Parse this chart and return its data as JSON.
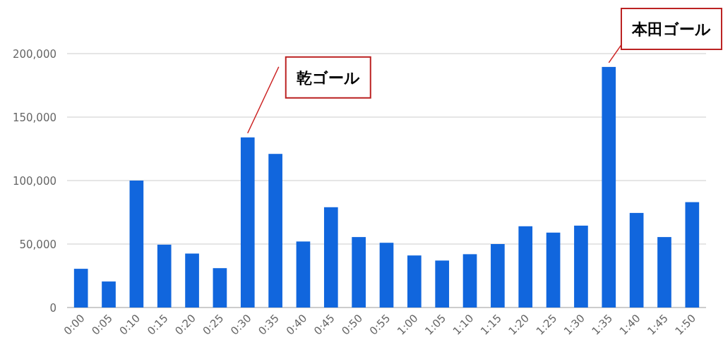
{
  "chart_data": {
    "type": "bar",
    "categories": [
      "0:00",
      "0:05",
      "0:10",
      "0:15",
      "0:20",
      "0:25",
      "0:30",
      "0:35",
      "0:40",
      "0:45",
      "0:50",
      "0:55",
      "1:00",
      "1:05",
      "1:10",
      "1:15",
      "1:20",
      "1:25",
      "1:30",
      "1:35",
      "1:40",
      "1:45",
      "1:50"
    ],
    "values": [
      30500,
      20500,
      100000,
      49500,
      42500,
      31000,
      134000,
      121000,
      52000,
      79000,
      55500,
      51000,
      41000,
      37000,
      42000,
      50000,
      64000,
      59000,
      64500,
      189500,
      74500,
      55500,
      83000
    ],
    "color": "#1166dd",
    "ylim": [
      0,
      200000
    ],
    "yticks": [
      0,
      {
        "value": 50000,
        "label": "50,000"
      },
      {
        "value": 100000,
        "label": "100,000"
      },
      {
        "value": 150000,
        "label": "150,000"
      },
      {
        "value": 200000,
        "label": "200,000"
      }
    ],
    "grid": "y",
    "annotations": [
      {
        "text": "乾ゴール",
        "x": "0:30",
        "y": 134000
      },
      {
        "text": "本田ゴール",
        "x": "1:35",
        "y": 189500
      }
    ]
  }
}
